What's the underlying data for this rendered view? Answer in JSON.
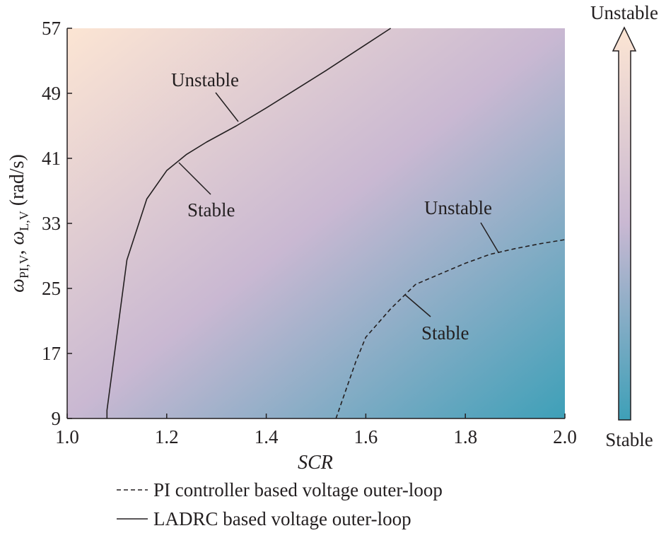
{
  "chart_data": {
    "type": "line",
    "xlabel": "SCR",
    "ylabel": {
      "omega1": "ω",
      "sub1": "PI,V",
      "sep": ", ",
      "omega2": "ω",
      "sub2": "L,V",
      "unit": " (rad/s)"
    },
    "xlim": [
      1.0,
      2.0
    ],
    "ylim": [
      9,
      57
    ],
    "xticks": [
      "1.0",
      "1.2",
      "1.4",
      "1.6",
      "1.8",
      "2.0"
    ],
    "yticks": [
      "9",
      "17",
      "25",
      "33",
      "41",
      "49",
      "57"
    ],
    "grid": false,
    "background": "gradient from light peach (top-left, unstable) to teal (bottom-right, stable)",
    "colors": {
      "unstable": "#fce5d3",
      "middle": "#c9b8d2",
      "stable": "#3ea0b8",
      "line": "#231f20"
    },
    "series": [
      {
        "name": "LADRC based voltage outer-loop",
        "style": "solid",
        "x": [
          1.08,
          1.08,
          1.12,
          1.16,
          1.2,
          1.24,
          1.28,
          1.34,
          1.4,
          1.46,
          1.52,
          1.58,
          1.65
        ],
        "y": [
          9,
          10,
          28.5,
          36,
          39.5,
          41.5,
          43,
          45,
          47.2,
          49.5,
          51.8,
          54.2,
          57
        ]
      },
      {
        "name": "PI controller based voltage outer-loop",
        "style": "dashed",
        "x": [
          1.54,
          1.56,
          1.58,
          1.6,
          1.65,
          1.7,
          1.75,
          1.8,
          1.85,
          1.9,
          1.95,
          2.0
        ],
        "y": [
          9,
          12.5,
          16,
          19,
          22.5,
          25.5,
          26.8,
          28.1,
          29.2,
          29.9,
          30.5,
          31
        ]
      }
    ],
    "annotations": [
      {
        "text": "Unstable",
        "region": "above solid line"
      },
      {
        "text": "Stable",
        "region": "below solid line"
      },
      {
        "text": "Unstable",
        "region": "above dashed line"
      },
      {
        "text": "Stable",
        "region": "below dashed line"
      }
    ],
    "colorbar": {
      "top_label": "Unstable",
      "bottom_label": "Stable"
    },
    "legend": {
      "placement": "bottom",
      "entries": [
        {
          "style": "dashed",
          "label": "PI controller based voltage outer-loop"
        },
        {
          "style": "solid",
          "label": "LADRC based voltage outer-loop"
        }
      ]
    }
  }
}
